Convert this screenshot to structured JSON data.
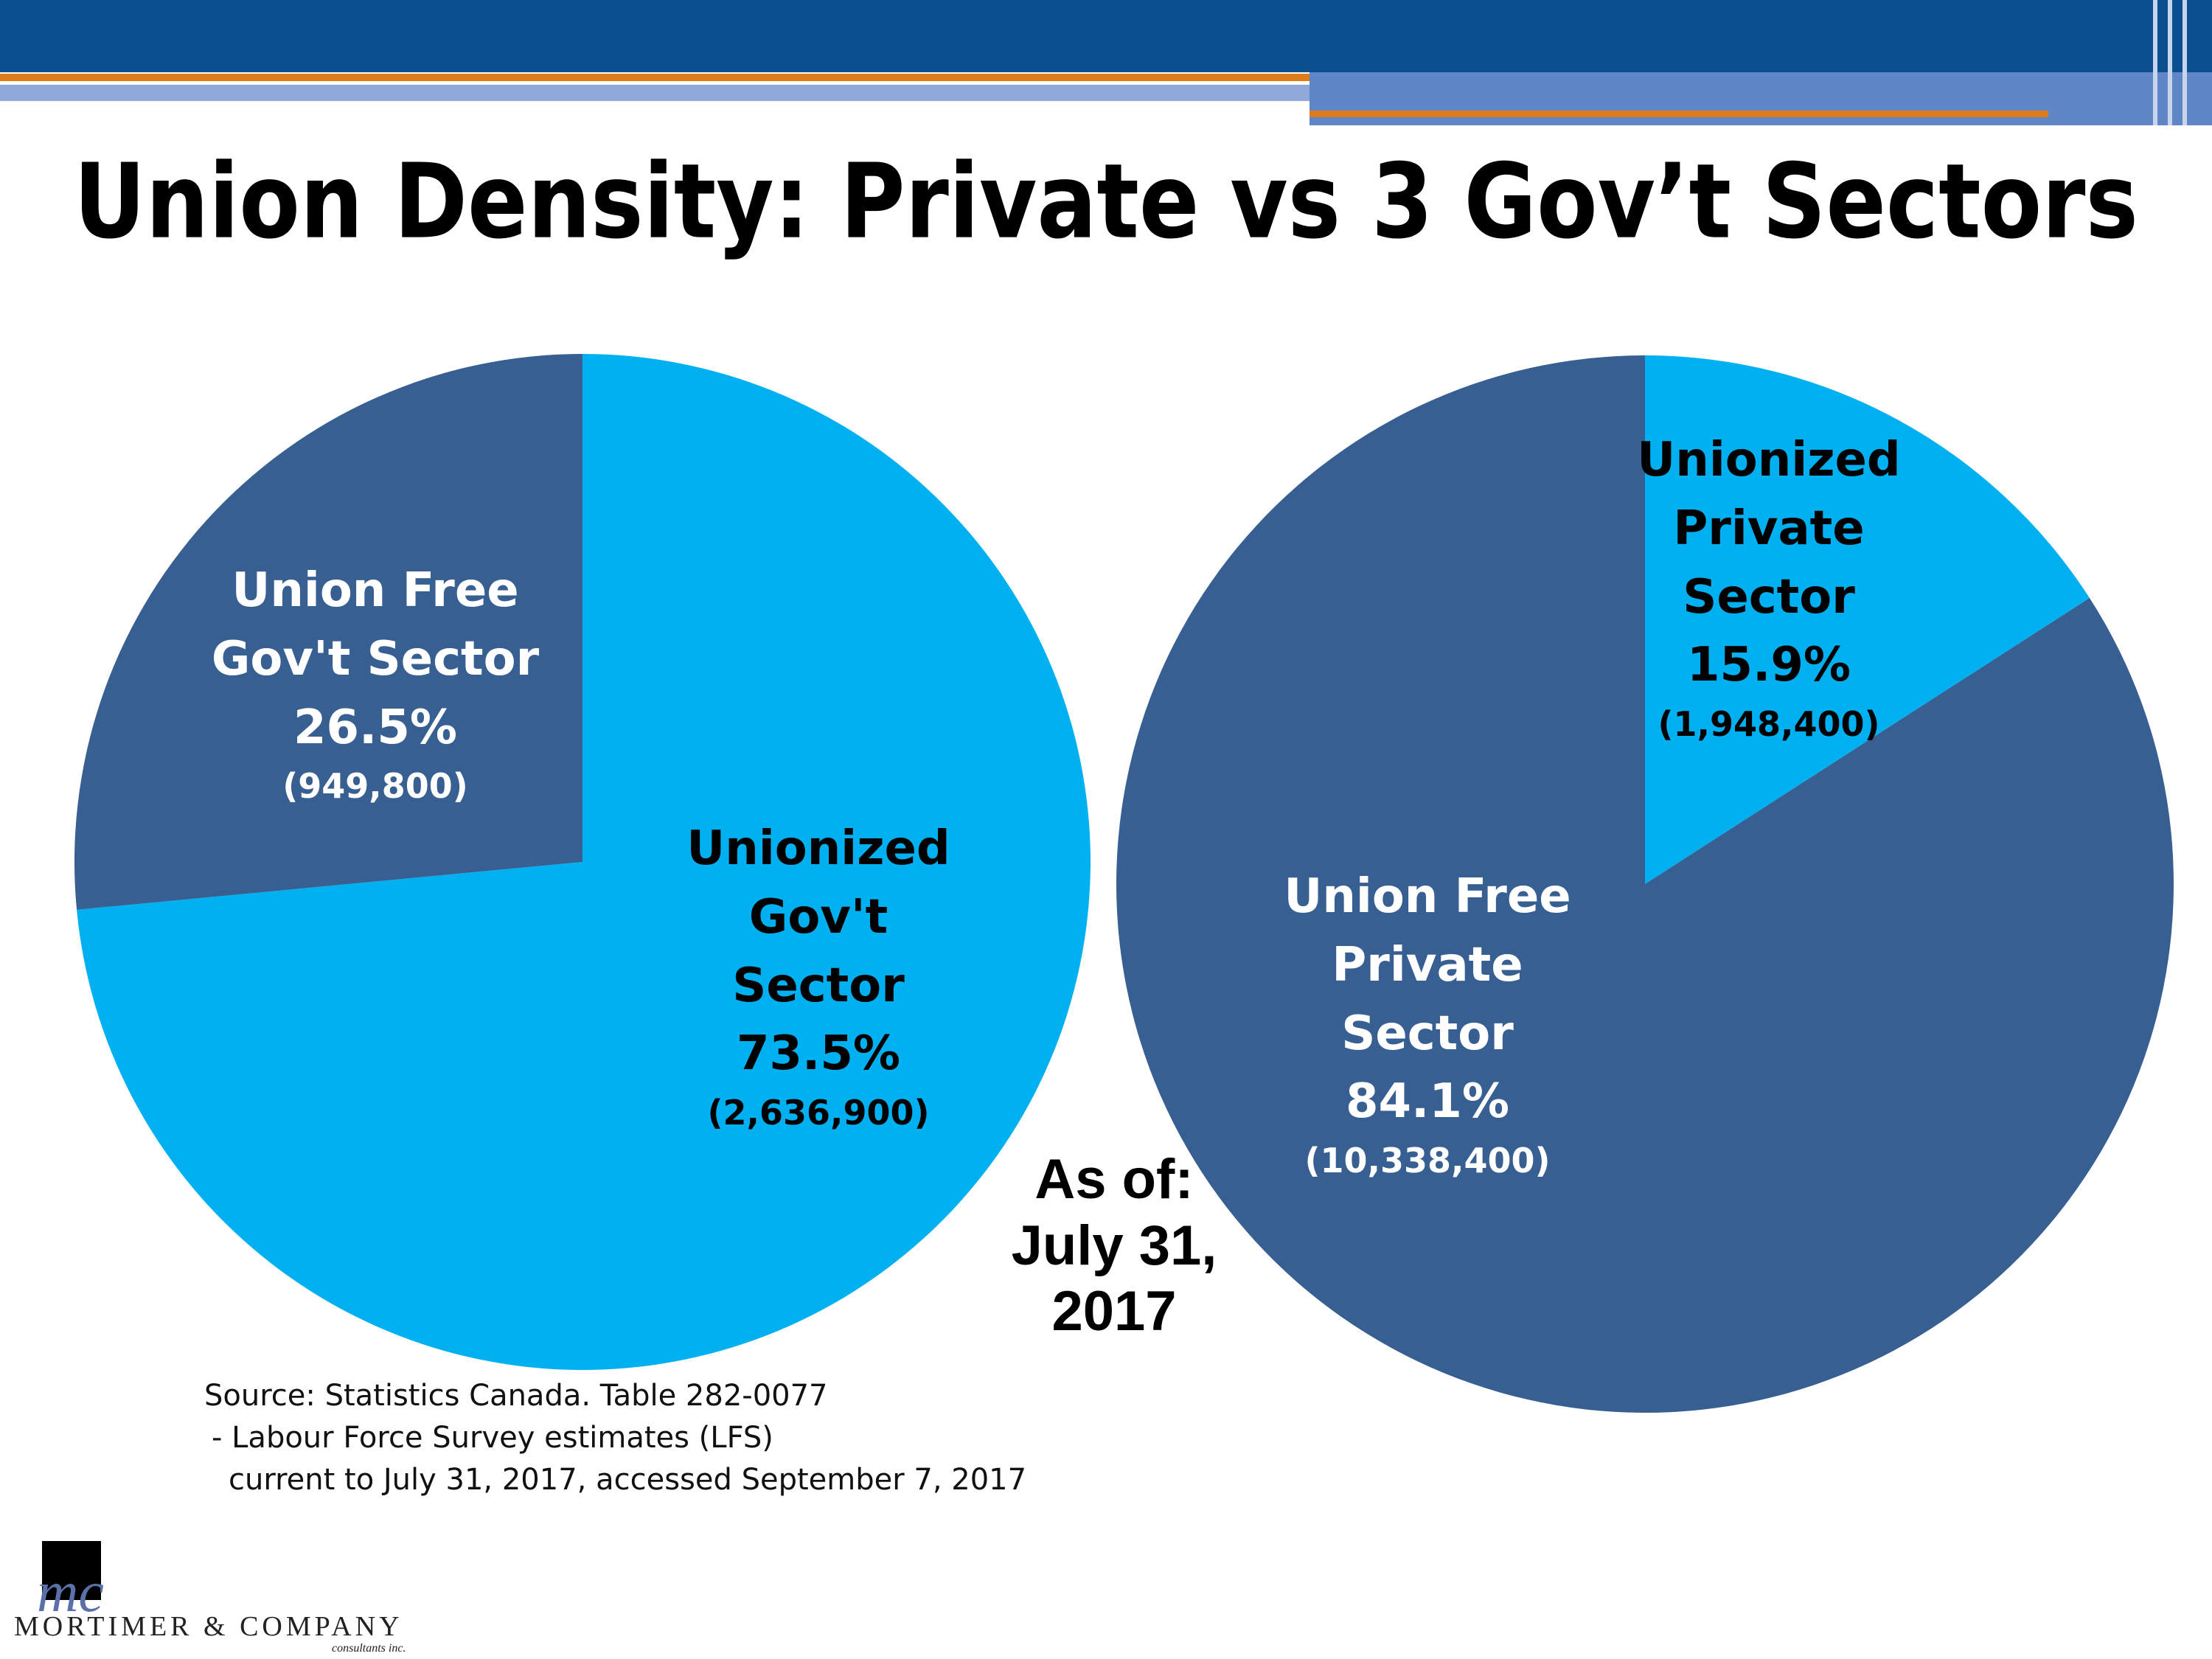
{
  "title": "Union Density: Private vs 3 Gov’t Sectors",
  "chart_data": [
    {
      "type": "pie",
      "categories": [
        "Unionized Gov't Sector",
        "Union Free Gov't Sector"
      ],
      "values": [
        73.5,
        26.5
      ],
      "value_labels": [
        "73.5%",
        "26.5%"
      ],
      "counts": [
        2636900,
        949800
      ],
      "count_labels": [
        "(2,636,900)",
        "(949,800)"
      ],
      "colors": [
        "#00b0f0",
        "#375f92"
      ],
      "label_colors": [
        "#000000",
        "#ffffff"
      ]
    },
    {
      "type": "pie",
      "categories": [
        "Unionized Private Sector",
        "Union Free Private Sector"
      ],
      "values": [
        15.9,
        84.1
      ],
      "value_labels": [
        "15.9%",
        "84.1%"
      ],
      "counts": [
        1948400,
        10338400
      ],
      "count_labels": [
        "(1,948,400)",
        "(10,338,400)"
      ],
      "colors": [
        "#00b0f0",
        "#375f92"
      ],
      "label_colors": [
        "#000000",
        "#ffffff"
      ]
    }
  ],
  "annotation": "As of: July 31, 2017",
  "source": [
    "Source: Statistics Canada. Table 282-0077",
    "- Labour Force Survey estimates (LFS)",
    "current to July 31, 2017, accessed September 7, 2017"
  ],
  "logo": {
    "mark": "mc",
    "name": "MORTIMER & COMPANY",
    "tagline": "consultants inc."
  }
}
